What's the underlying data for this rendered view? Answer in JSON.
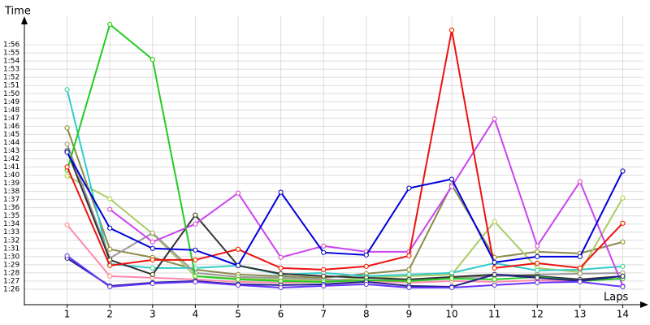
{
  "chart_data": {
    "type": "line",
    "y_title": "Time",
    "x_title": "Laps",
    "xlim": [
      0,
      14.6
    ],
    "ylim": [
      84.1,
      119.5
    ],
    "xticks": [
      1,
      2,
      3,
      4,
      5,
      6,
      7,
      8,
      9,
      10,
      11,
      12,
      13,
      14
    ],
    "yticks": [
      {
        "value": 86,
        "label": "1:26"
      },
      {
        "value": 87,
        "label": "1:27"
      },
      {
        "value": 88,
        "label": "1:28"
      },
      {
        "value": 89,
        "label": "1:29"
      },
      {
        "value": 90,
        "label": "1:30"
      },
      {
        "value": 91,
        "label": "1:31"
      },
      {
        "value": 92,
        "label": "1:32"
      },
      {
        "value": 93,
        "label": "1:33"
      },
      {
        "value": 94,
        "label": "1:34"
      },
      {
        "value": 95,
        "label": "1:35"
      },
      {
        "value": 96,
        "label": "1:36"
      },
      {
        "value": 97,
        "label": "1:37"
      },
      {
        "value": 98,
        "label": "1:38"
      },
      {
        "value": 99,
        "label": "1:39"
      },
      {
        "value": 100,
        "label": "1:40"
      },
      {
        "value": 101,
        "label": "1:41"
      },
      {
        "value": 102,
        "label": "1:42"
      },
      {
        "value": 103,
        "label": "1:43"
      },
      {
        "value": 104,
        "label": "1:44"
      },
      {
        "value": 105,
        "label": "1:45"
      },
      {
        "value": 106,
        "label": "1:46"
      },
      {
        "value": 107,
        "label": "1:47"
      },
      {
        "value": 108,
        "label": "1:48"
      },
      {
        "value": 109,
        "label": "1:49"
      },
      {
        "value": 110,
        "label": "1:50"
      },
      {
        "value": 111,
        "label": "1:51"
      },
      {
        "value": 112,
        "label": "1:52"
      },
      {
        "value": 113,
        "label": "1:53"
      },
      {
        "value": 114,
        "label": "1:54"
      },
      {
        "value": 115,
        "label": "1:55"
      },
      {
        "value": 116,
        "label": "1:56"
      }
    ],
    "grid": true,
    "x": [
      1,
      2,
      3,
      4,
      5,
      6,
      7,
      8,
      9,
      10,
      11,
      12,
      13,
      14
    ],
    "series": [
      {
        "color": "#8a8a4a",
        "values": [
          105.8,
          90.9,
          89.9,
          88.4,
          87.8,
          87.6,
          87.4,
          87.9,
          88.4,
          98.8,
          89.9,
          90.6,
          90.4,
          91.8
        ]
      },
      {
        "color": "#aacc66",
        "values": [
          99.9,
          97.1,
          92.8,
          87.6,
          87.3,
          87.2,
          87.0,
          87.4,
          87.6,
          87.8,
          94.3,
          88.6,
          88.1,
          97.2
        ]
      },
      {
        "color": "#33cccc",
        "values": [
          110.5,
          89.1,
          88.6,
          88.6,
          88.9,
          87.8,
          88.0,
          87.6,
          87.8,
          88.0,
          89.2,
          88.3,
          88.4,
          88.8
        ]
      },
      {
        "color": "#999999",
        "values": [
          103.8,
          89.8,
          92.9,
          88.0,
          87.5,
          87.4,
          87.2,
          87.0,
          87.2,
          87.4,
          87.6,
          87.8,
          87.9,
          88.0
        ]
      },
      {
        "color": "#ff88aa",
        "values": [
          93.9,
          87.6,
          87.4,
          87.2,
          86.9,
          86.8,
          86.9,
          87.0,
          86.8,
          87.0,
          86.9,
          87.1,
          87.0,
          87.3
        ]
      },
      {
        "color": "#333333",
        "values": [
          103.0,
          89.6,
          87.8,
          95.1,
          88.9,
          87.9,
          87.6,
          87.4,
          87.2,
          87.5,
          87.8,
          87.6,
          87.2,
          87.6
        ]
      },
      {
        "color": "#cc44ee",
        "values": [
          null,
          95.8,
          91.8,
          94.0,
          97.8,
          89.9,
          91.3,
          90.6,
          90.6,
          98.6,
          106.9,
          91.3,
          99.2,
          86.4
        ]
      },
      {
        "color": "#22cc22",
        "values": [
          100.6,
          118.5,
          114.2,
          87.6,
          87.2,
          87.0,
          86.9,
          87.1,
          87.0,
          87.3,
          87.2,
          87.5,
          87.0,
          87.3
        ]
      },
      {
        "color": "#ee1111",
        "values": [
          101.0,
          88.9,
          89.6,
          89.6,
          90.9,
          88.6,
          88.4,
          88.8,
          90.1,
          117.8,
          88.6,
          89.2,
          88.6,
          94.1
        ]
      },
      {
        "color": "#0000dd",
        "values": [
          102.8,
          93.5,
          91.0,
          90.8,
          88.9,
          97.9,
          90.5,
          90.2,
          98.4,
          99.5,
          89.3,
          90.0,
          90.0,
          100.5
        ]
      },
      {
        "color": "#222288",
        "values": [
          89.8,
          86.4,
          86.8,
          87.0,
          86.6,
          86.5,
          86.6,
          86.9,
          86.4,
          86.3,
          87.8,
          87.4,
          87.0,
          87.6
        ]
      },
      {
        "color": "#6633ff",
        "values": [
          90.1,
          86.3,
          86.7,
          86.9,
          86.5,
          86.2,
          86.4,
          86.6,
          86.2,
          86.2,
          86.5,
          86.8,
          86.9,
          86.3
        ]
      }
    ]
  }
}
